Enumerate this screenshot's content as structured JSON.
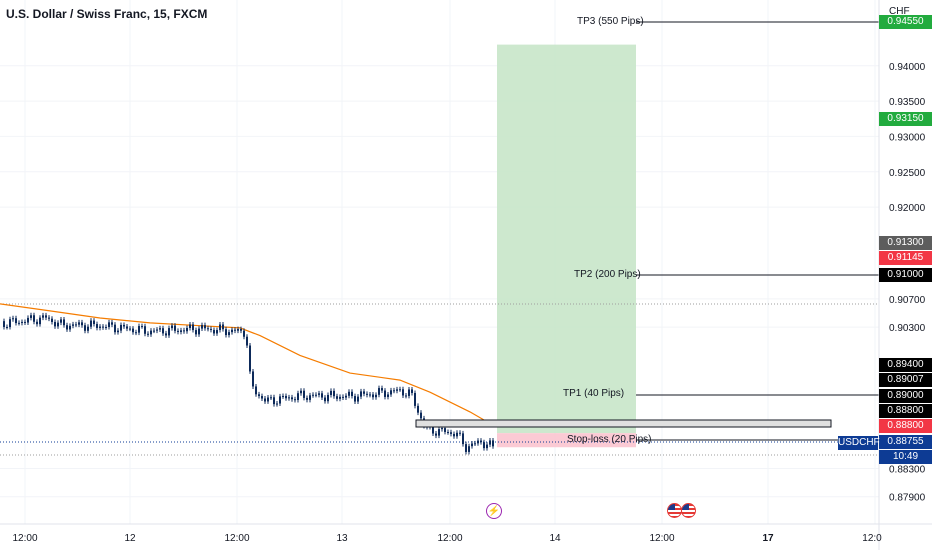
{
  "header": {
    "title": "U.S. Dollar / Swiss Franc, 15, FXCM",
    "currency": "CHF"
  },
  "price_axis": {
    "min": 0.8774,
    "max": 0.9462,
    "labels": [
      "0.94000",
      "0.93500",
      "0.93000",
      "0.92500",
      "0.92000",
      "0.90700",
      "0.90300",
      "0.88300",
      "0.87900"
    ]
  },
  "price_tags": [
    {
      "text": "0.94550",
      "price": 0.9455,
      "bg": "#22ab3e",
      "fg": "#ffffff"
    },
    {
      "text": "0.93150",
      "price": 0.9315,
      "bg": "#22ab3e",
      "fg": "#ffffff"
    },
    {
      "text": "0.91300",
      "price": 0.913,
      "bg": "#5d5d5d",
      "fg": "#ffffff"
    },
    {
      "text": "0.91145",
      "price": 0.91145,
      "bg": "#f23645",
      "fg": "#ffffff"
    },
    {
      "text": "0.91000",
      "price": 0.91,
      "bg": "#000000",
      "fg": "#ffffff"
    },
    {
      "text": "0.89400",
      "price": 0.894,
      "bg": "#000000",
      "fg": "#ffffff"
    },
    {
      "text": "0.89007",
      "price": 0.89007,
      "bg": "#000000",
      "fg": "#ffffff"
    },
    {
      "text": "0.89000",
      "price": 0.89,
      "bg": "#000000",
      "fg": "#ffffff"
    },
    {
      "text": "0.88800",
      "price": 0.8882,
      "bg": "#000000",
      "fg": "#ffffff"
    },
    {
      "text": "0.88800",
      "price": 0.888,
      "bg": "#f23645",
      "fg": "#ffffff"
    },
    {
      "text": "0.88755",
      "price": 0.88755,
      "bg": "#0d3b94",
      "fg": "#ffffff"
    }
  ],
  "symbol_tag": {
    "symbol": "USDCHF",
    "countdown": "10:49"
  },
  "time_axis": {
    "labels": [
      "12:00",
      "12",
      "12:00",
      "13",
      "12:00",
      "14",
      "12:00",
      "17",
      "12:0"
    ]
  },
  "trade_levels": {
    "entry": 0.888,
    "stop": 0.886,
    "tp1": 0.892,
    "tp2": 0.908,
    "tp3": 0.943,
    "labels": {
      "tp3": "TP3 (550 Pips)",
      "tp2": "TP2 (200 Pips)",
      "tp1": "TP1 (40 Pips)",
      "sl": "Stop-loss (20 Pips)"
    }
  },
  "events": [
    "bolt-icon",
    "us-flag-icon",
    "us-flag-icon"
  ],
  "colors": {
    "candle": "#0d2a5a",
    "ma": "#f57c00",
    "profit_zone": "#c8e6c9",
    "loss_zone": "#f8bbd0",
    "grid": "#f0f3fa"
  }
}
